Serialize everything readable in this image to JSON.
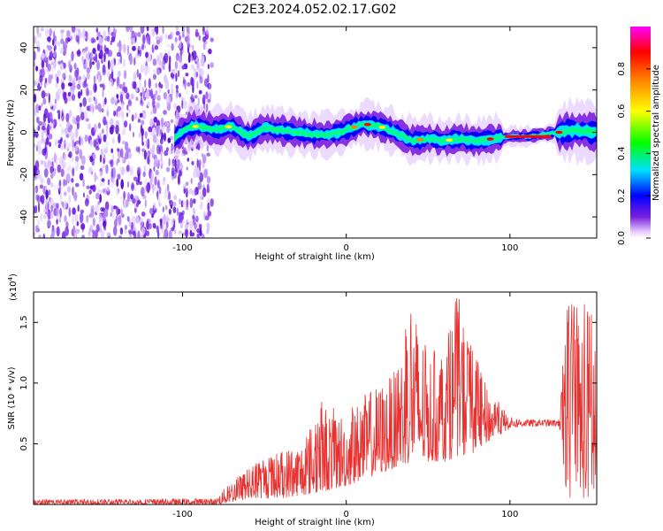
{
  "title": "C2E3.2024.052.02.17.G02",
  "colors": {
    "signal": "#e8302f",
    "background": "#ffffff",
    "axes": "#000000"
  },
  "chart_data": [
    {
      "type": "heatmap",
      "xlabel": "Height of straight line (km)",
      "ylabel": "Frequency (Hz)",
      "xlim": [
        -191,
        153
      ],
      "ylim": [
        -50,
        50
      ],
      "xticks": [
        -100,
        0,
        100
      ],
      "yticks": [
        -40,
        -20,
        0,
        20,
        40
      ],
      "xtick_labels": [
        "-100",
        "0",
        "100"
      ],
      "ytick_labels": [
        "-40",
        "-20",
        "0",
        "20",
        "40"
      ],
      "colorbar": {
        "label": "Normalized spectral amplitude",
        "range": [
          0,
          1
        ],
        "ticks": [
          0.0,
          0.2,
          0.4,
          0.6,
          0.8
        ],
        "tick_labels": [
          "0.0",
          "0.2",
          "0.4",
          "0.6",
          "0.8"
        ],
        "colormap": [
          "#ffffff",
          "#e6ccff",
          "#7a1fe0",
          "#0000ff",
          "#00e0ff",
          "#00ff00",
          "#ffff00",
          "#ff8000",
          "#ff0000",
          "#ff00ff"
        ]
      },
      "noise_region_x": [
        -191,
        -82
      ],
      "centerline": [
        {
          "x": -105,
          "y": -3
        },
        {
          "x": -98,
          "y": 2
        },
        {
          "x": -90,
          "y": 3
        },
        {
          "x": -80,
          "y": 1
        },
        {
          "x": -70,
          "y": 3
        },
        {
          "x": -60,
          "y": -2
        },
        {
          "x": -50,
          "y": 2
        },
        {
          "x": -40,
          "y": 1
        },
        {
          "x": -30,
          "y": 0
        },
        {
          "x": -20,
          "y": -1
        },
        {
          "x": -10,
          "y": -1
        },
        {
          "x": 0,
          "y": 1
        },
        {
          "x": 10,
          "y": 4
        },
        {
          "x": 20,
          "y": 3
        },
        {
          "x": 30,
          "y": 0
        },
        {
          "x": 40,
          "y": -4
        },
        {
          "x": 50,
          "y": -3
        },
        {
          "x": 60,
          "y": -4
        },
        {
          "x": 70,
          "y": -3
        },
        {
          "x": 80,
          "y": -4
        },
        {
          "x": 90,
          "y": -3
        },
        {
          "x": 100,
          "y": -2
        },
        {
          "x": 110,
          "y": -2
        },
        {
          "x": 120,
          "y": -1
        },
        {
          "x": 130,
          "y": 0
        },
        {
          "x": 140,
          "y": 1
        },
        {
          "x": 153,
          "y": 0
        }
      ]
    },
    {
      "type": "line",
      "xlabel": "Height of straight line (km)",
      "ylabel": "SNR (10 * v/v)",
      "y_multiplier_label": "(x10",
      "y_multiplier_exp": "4",
      "y_multiplier_close": ")",
      "xlim": [
        -191,
        153
      ],
      "ylim": [
        0,
        1.75
      ],
      "xticks": [
        -100,
        0,
        100
      ],
      "yticks": [
        0.5,
        1.0,
        1.5
      ],
      "xtick_labels": [
        "-100",
        "0",
        "100"
      ],
      "ytick_labels": [
        "0.5",
        "1.0",
        "1.5"
      ],
      "series": [
        {
          "envelope": [
            {
              "x": -191,
              "lo": 0.0,
              "hi": 0.04
            },
            {
              "x": -80,
              "lo": 0.0,
              "hi": 0.05
            },
            {
              "x": -70,
              "lo": 0.02,
              "hi": 0.2
            },
            {
              "x": -55,
              "lo": 0.05,
              "hi": 0.35
            },
            {
              "x": -40,
              "lo": 0.05,
              "hi": 0.45
            },
            {
              "x": -25,
              "lo": 0.08,
              "hi": 0.55
            },
            {
              "x": -15,
              "lo": 0.1,
              "hi": 0.85
            },
            {
              "x": 0,
              "lo": 0.15,
              "hi": 0.75
            },
            {
              "x": 10,
              "lo": 0.2,
              "hi": 0.9
            },
            {
              "x": 20,
              "lo": 0.25,
              "hi": 1.0
            },
            {
              "x": 30,
              "lo": 0.3,
              "hi": 1.1
            },
            {
              "x": 40,
              "lo": 0.35,
              "hi": 1.7
            },
            {
              "x": 50,
              "lo": 0.35,
              "hi": 1.25
            },
            {
              "x": 60,
              "lo": 0.35,
              "hi": 1.3
            },
            {
              "x": 68,
              "lo": 0.4,
              "hi": 1.75
            },
            {
              "x": 75,
              "lo": 0.4,
              "hi": 1.4
            },
            {
              "x": 85,
              "lo": 0.5,
              "hi": 1.0
            },
            {
              "x": 100,
              "lo": 0.62,
              "hi": 0.72
            },
            {
              "x": 110,
              "lo": 0.64,
              "hi": 0.7
            },
            {
              "x": 130,
              "lo": 0.64,
              "hi": 0.7
            },
            {
              "x": 135,
              "lo": 0.05,
              "hi": 1.7
            },
            {
              "x": 153,
              "lo": 0.05,
              "hi": 1.65
            }
          ]
        }
      ]
    }
  ]
}
